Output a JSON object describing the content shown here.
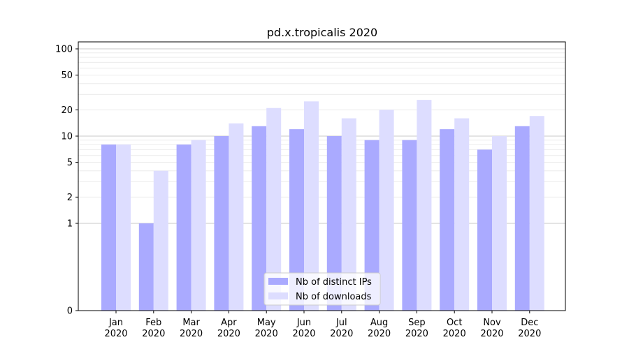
{
  "chart_data": {
    "type": "bar",
    "title": "pd.x.tropicalis 2020",
    "xlabel": "",
    "ylabel": "",
    "y_scale": "symlog",
    "ylim": [
      0,
      110
    ],
    "y_ticks": [
      0,
      1,
      2,
      5,
      10,
      20,
      50,
      100
    ],
    "y_tick_labels": [
      "0",
      "1",
      "2",
      "5",
      "10",
      "20",
      "50",
      "100"
    ],
    "categories": [
      "Jan\n2020",
      "Feb\n2020",
      "Mar\n2020",
      "Apr\n2020",
      "May\n2020",
      "Jun\n2020",
      "Jul\n2020",
      "Aug\n2020",
      "Sep\n2020",
      "Oct\n2020",
      "Nov\n2020",
      "Dec\n2020"
    ],
    "series": [
      {
        "name": "Nb of distinct IPs",
        "color": "#aaaaff",
        "values": [
          8,
          1,
          8,
          10,
          13,
          12,
          10,
          9,
          9,
          12,
          7,
          13
        ]
      },
      {
        "name": "Nb of downloads",
        "color": "#ddddff",
        "values": [
          8,
          4,
          9,
          14,
          21,
          25,
          16,
          20,
          26,
          16,
          10,
          17
        ]
      }
    ],
    "legend_position": "lower center",
    "grid": "horizontal"
  }
}
